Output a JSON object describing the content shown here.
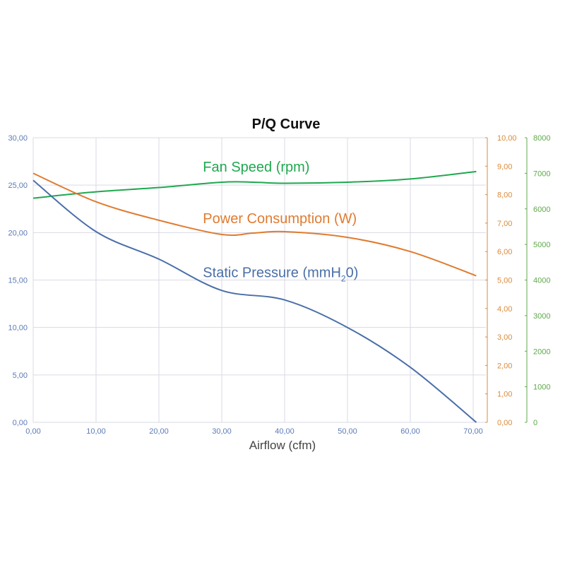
{
  "chart_data": {
    "type": "line",
    "title": "P/Q Curve",
    "xlabel": "Airflow (cfm)",
    "xlim": [
      0,
      70
    ],
    "x_ticks": [
      "0,00",
      "10,00",
      "20,00",
      "30,00",
      "40,00",
      "50,00",
      "60,00",
      "70,00"
    ],
    "grid": true,
    "axes": {
      "left": {
        "range": [
          0,
          30
        ],
        "ticks": [
          "0,00",
          "5,00",
          "10,00",
          "15,00",
          "20,00",
          "25,00",
          "30,00"
        ],
        "color": "#5b7bb5"
      },
      "right_inner": {
        "range": [
          0,
          10
        ],
        "ticks": [
          "0,00",
          "1,00",
          "2,00",
          "3,00",
          "4,00",
          "5,00",
          "6,00",
          "7,00",
          "8,00",
          "9,00",
          "10,00"
        ],
        "color": "#d98a3c"
      },
      "right_outer": {
        "range": [
          0,
          8000
        ],
        "ticks": [
          "0",
          "1000",
          "2000",
          "3000",
          "4000",
          "5000",
          "6000",
          "7000",
          "8000"
        ],
        "color": "#5fa84a"
      }
    },
    "series": [
      {
        "name": "Fan Speed (rpm)",
        "axis": "right_outer",
        "color": "#1fa84f",
        "label_pos": [
          27,
          7050
        ],
        "x": [
          0,
          10,
          20,
          30,
          35,
          40,
          50,
          60,
          70.5
        ],
        "values": [
          6300,
          6480,
          6600,
          6750,
          6750,
          6720,
          6750,
          6840,
          7050
        ]
      },
      {
        "name": "Power Consumption (W)",
        "axis": "right_inner",
        "color": "#e07b30",
        "label_pos": [
          27,
          7.0
        ],
        "x": [
          0,
          10,
          20,
          30,
          35,
          40,
          50,
          60,
          70.5
        ],
        "values": [
          8.75,
          7.75,
          7.1,
          6.6,
          6.65,
          6.7,
          6.5,
          6.0,
          5.15
        ]
      },
      {
        "name": "Static Pressure (mmH",
        "axis": "left",
        "color": "#4a6fa8",
        "label_pos": [
          27,
          15.3
        ],
        "label_sub": "2",
        "label_tail": "0)",
        "x": [
          0,
          10,
          20,
          30,
          40,
          50,
          60,
          70.5
        ],
        "values": [
          25.5,
          20.1,
          17.2,
          13.9,
          12.9,
          10.0,
          5.8,
          0.0
        ]
      }
    ]
  }
}
